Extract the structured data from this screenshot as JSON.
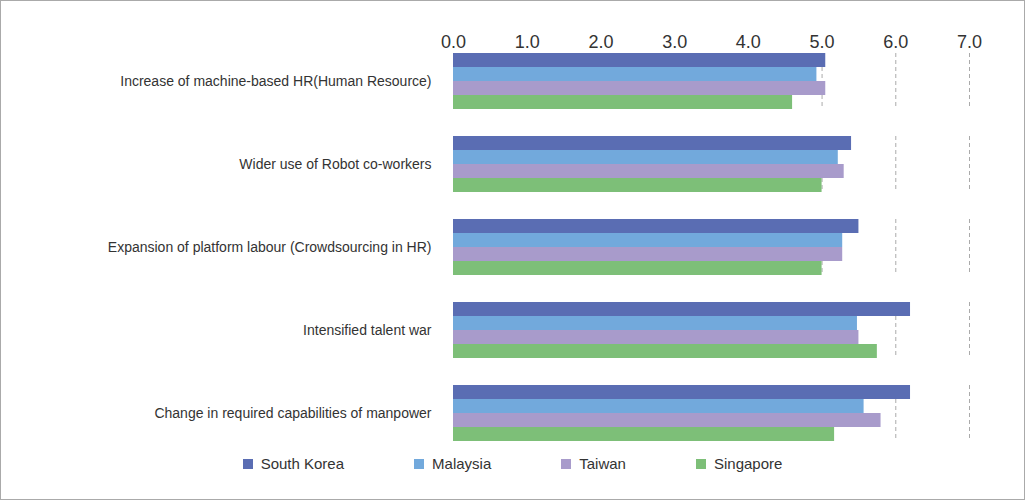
{
  "chart_data": {
    "type": "bar",
    "orientation": "horizontal",
    "categories": [
      "Increase of machine-based HR(Human Resource)",
      "Wider use of Robot co-workers",
      "Expansion of platform labour (Crowdsourcing in HR)",
      "Intensified talent war",
      "Change in required capabilities of manpower"
    ],
    "series": [
      {
        "name": "South Korea",
        "color": "#5a6db3",
        "values": [
          5.05,
          5.4,
          5.5,
          6.2,
          6.2
        ]
      },
      {
        "name": "Malaysia",
        "color": "#72a9dc",
        "values": [
          4.93,
          5.22,
          5.28,
          5.48,
          5.57
        ]
      },
      {
        "name": "Taiwan",
        "color": "#a89bcb",
        "values": [
          5.05,
          5.3,
          5.28,
          5.5,
          5.8
        ]
      },
      {
        "name": "Singapore",
        "color": "#7dbf78",
        "values": [
          4.6,
          5.0,
          5.0,
          5.75,
          5.17
        ]
      }
    ],
    "xlim": [
      0,
      7
    ],
    "xticks": [
      0,
      1,
      2,
      3,
      4,
      5,
      6,
      7
    ],
    "grid": true,
    "legend": "bottom"
  }
}
